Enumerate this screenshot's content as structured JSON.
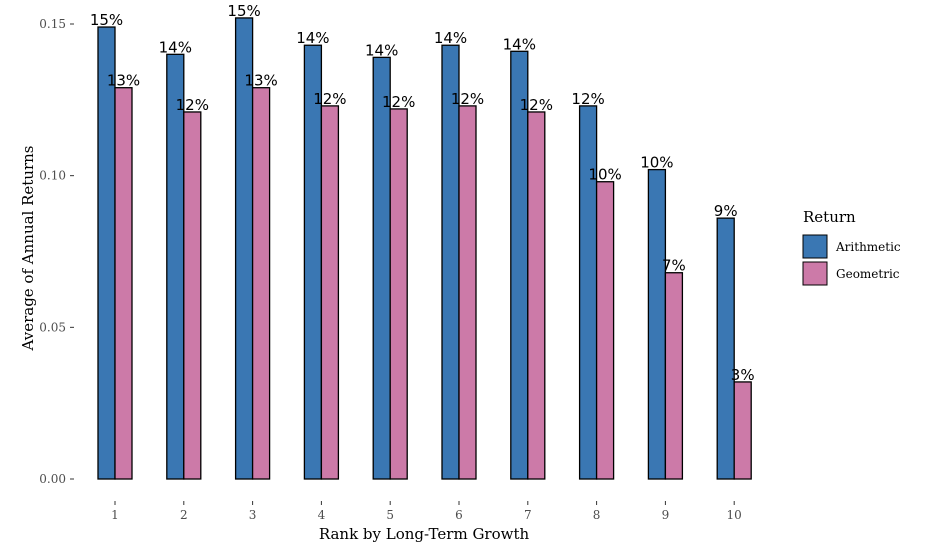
{
  "chart_data": {
    "type": "bar",
    "categories": [
      "1",
      "2",
      "3",
      "4",
      "5",
      "6",
      "7",
      "8",
      "9",
      "10"
    ],
    "series": [
      {
        "name": "Arithmetic",
        "color": "#3a77b3",
        "values": [
          0.149,
          0.14,
          0.152,
          0.143,
          0.139,
          0.143,
          0.141,
          0.123,
          0.102,
          0.086
        ],
        "labels": [
          "15%",
          "14%",
          "15%",
          "14%",
          "14%",
          "14%",
          "14%",
          "12%",
          "10%",
          "9%"
        ]
      },
      {
        "name": "Geometric",
        "color": "#cc7aa8",
        "values": [
          0.129,
          0.121,
          0.129,
          0.123,
          0.122,
          0.123,
          0.121,
          0.098,
          0.068,
          0.032
        ],
        "labels": [
          "13%",
          "12%",
          "13%",
          "12%",
          "12%",
          "12%",
          "12%",
          "10%",
          "7%",
          "3%"
        ]
      }
    ],
    "title": "",
    "xlabel": "Rank by Long-Term Growth",
    "ylabel": "Average of Annual Returns",
    "ylim": [
      0,
      0.155
    ],
    "yticks": [
      0.0,
      0.05,
      0.1,
      0.15
    ],
    "ytick_labels": [
      "0.00",
      "0.05",
      "0.10",
      "0.15"
    ],
    "grid": false,
    "legend": {
      "title": "Return",
      "position": "right"
    }
  }
}
